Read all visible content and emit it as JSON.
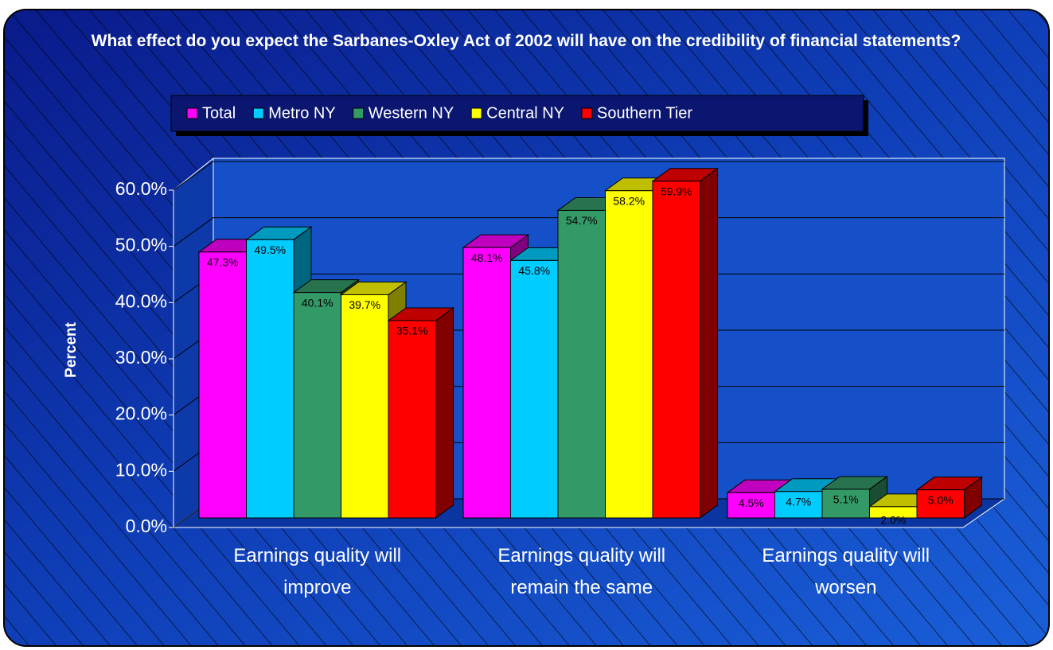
{
  "chart_data": {
    "type": "bar3d",
    "title": "What effect do you expect the Sarbanes-Oxley Act of 2002 will have on the credibility of financial statements?",
    "y_label": "Percent",
    "categories": [
      "Earnings quality will improve",
      "Earnings quality will remain the same",
      "Earnings quality will worsen"
    ],
    "series": [
      {
        "name": "Total",
        "color": "#ff00ff",
        "values": [
          47.3,
          48.1,
          4.5
        ],
        "value_labels": [
          "47.3%",
          "48.1%",
          "4.5%"
        ]
      },
      {
        "name": "Metro NY",
        "color": "#00ccff",
        "values": [
          49.5,
          45.8,
          4.7
        ],
        "value_labels": [
          "49.5%",
          "45.8%",
          "4.7%"
        ]
      },
      {
        "name": "Western NY",
        "color": "#339966",
        "values": [
          40.1,
          54.7,
          5.1
        ],
        "value_labels": [
          "40.1%",
          "54.7%",
          "5.1%"
        ]
      },
      {
        "name": "Central NY",
        "color": "#ffff00",
        "values": [
          39.7,
          58.2,
          2.0
        ],
        "value_labels": [
          "39.7%",
          "58.2%",
          "2.0%"
        ]
      },
      {
        "name": "Southern Tier",
        "color": "#ff0000",
        "values": [
          35.1,
          59.9,
          5.0
        ],
        "value_labels": [
          "35.1%",
          "59.9%",
          "5.0%"
        ]
      }
    ],
    "ylim": [
      0,
      60
    ],
    "yticks": [
      {
        "value": 0,
        "label": "0.0%"
      },
      {
        "value": 10,
        "label": "10.0%"
      },
      {
        "value": 20,
        "label": "20.0%"
      },
      {
        "value": 30,
        "label": "30.0%"
      },
      {
        "value": 40,
        "label": "40.0%"
      },
      {
        "value": 50,
        "label": "50.0%"
      },
      {
        "value": 60,
        "label": "60.0%"
      }
    ],
    "grid": true,
    "legend": "top"
  }
}
